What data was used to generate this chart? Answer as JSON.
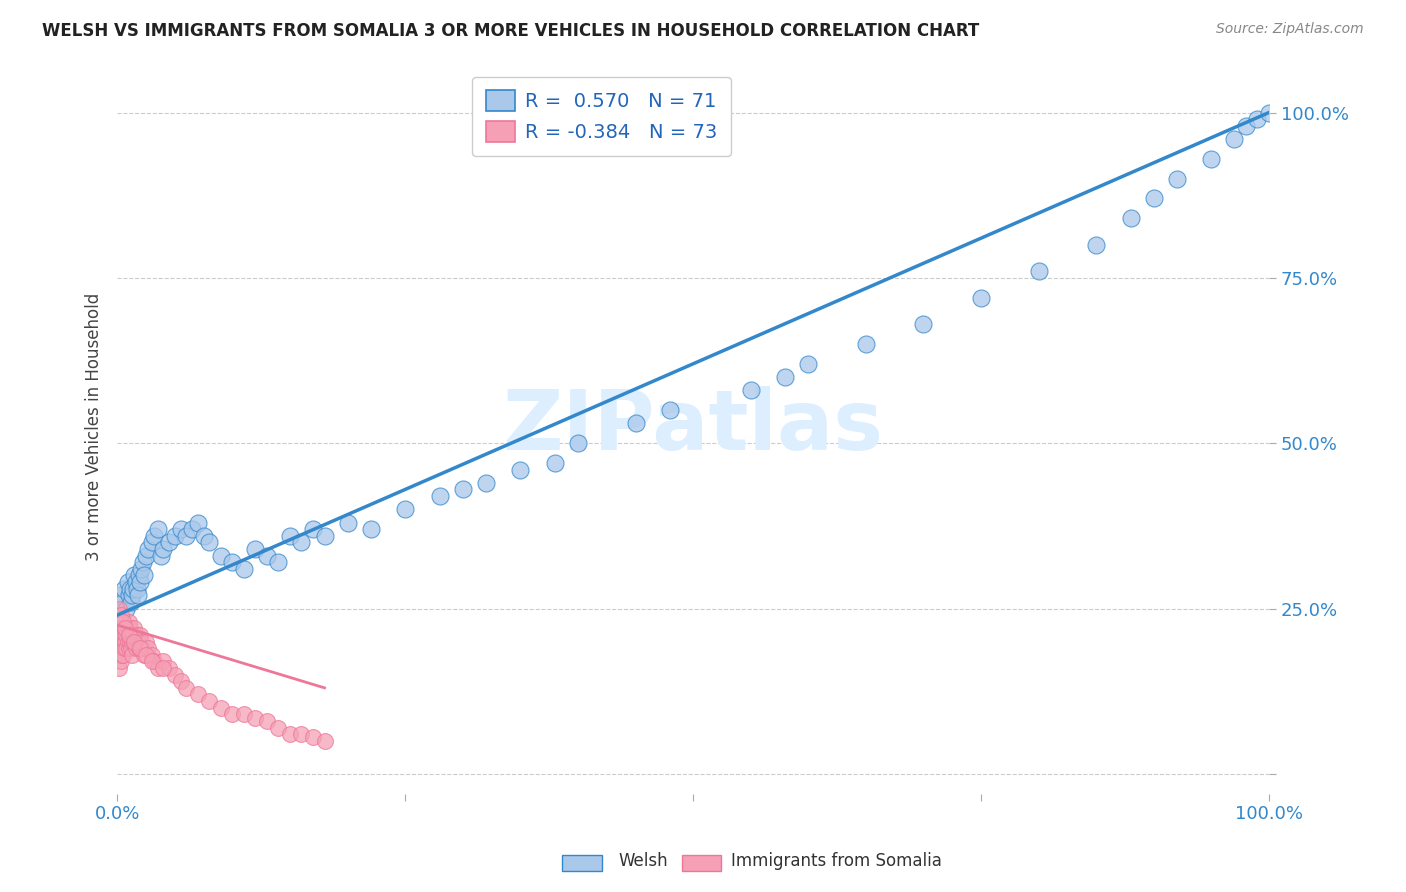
{
  "title": "WELSH VS IMMIGRANTS FROM SOMALIA 3 OR MORE VEHICLES IN HOUSEHOLD CORRELATION CHART",
  "source": "Source: ZipAtlas.com",
  "ylabel": "3 or more Vehicles in Household",
  "legend_welsh_r": "R =  0.570",
  "legend_welsh_n": "N = 71",
  "legend_somalia_r": "R = -0.384",
  "legend_somalia_n": "N = 73",
  "welsh_color": "#aac8ea",
  "somalia_color": "#f5a0b5",
  "welsh_line_color": "#3388cc",
  "somalia_line_color": "#ee7799",
  "watermark_color": "#ddeeff",
  "background_color": "#ffffff",
  "xlim": [
    0.0,
    100.0
  ],
  "ylim": [
    -3.0,
    108.0
  ],
  "welsh_x": [
    0.3,
    0.5,
    0.6,
    0.8,
    0.9,
    1.0,
    1.1,
    1.2,
    1.3,
    1.4,
    1.5,
    1.6,
    1.7,
    1.8,
    1.9,
    2.0,
    2.1,
    2.2,
    2.3,
    2.5,
    2.7,
    3.0,
    3.2,
    3.5,
    3.8,
    4.0,
    4.5,
    5.0,
    5.5,
    6.0,
    6.5,
    7.0,
    7.5,
    8.0,
    9.0,
    10.0,
    11.0,
    12.0,
    13.0,
    14.0,
    15.0,
    16.0,
    17.0,
    18.0,
    20.0,
    22.0,
    25.0,
    28.0,
    30.0,
    32.0,
    35.0,
    38.0,
    40.0,
    45.0,
    48.0,
    55.0,
    58.0,
    60.0,
    65.0,
    70.0,
    75.0,
    80.0,
    85.0,
    88.0,
    90.0,
    92.0,
    95.0,
    97.0,
    98.0,
    99.0,
    100.0
  ],
  "welsh_y": [
    27.0,
    26.0,
    28.0,
    25.0,
    29.0,
    27.0,
    28.0,
    26.0,
    27.0,
    28.0,
    30.0,
    29.0,
    28.0,
    27.0,
    30.0,
    29.0,
    31.0,
    32.0,
    30.0,
    33.0,
    34.0,
    35.0,
    36.0,
    37.0,
    33.0,
    34.0,
    35.0,
    36.0,
    37.0,
    36.0,
    37.0,
    38.0,
    36.0,
    35.0,
    33.0,
    32.0,
    31.0,
    34.0,
    33.0,
    32.0,
    36.0,
    35.0,
    37.0,
    36.0,
    38.0,
    37.0,
    40.0,
    42.0,
    43.0,
    44.0,
    46.0,
    47.0,
    50.0,
    53.0,
    55.0,
    58.0,
    60.0,
    62.0,
    65.0,
    68.0,
    72.0,
    76.0,
    80.0,
    84.0,
    87.0,
    90.0,
    93.0,
    96.0,
    98.0,
    99.0,
    100.0
  ],
  "somalia_x": [
    0.1,
    0.1,
    0.2,
    0.2,
    0.3,
    0.3,
    0.3,
    0.4,
    0.4,
    0.5,
    0.5,
    0.5,
    0.6,
    0.6,
    0.7,
    0.7,
    0.8,
    0.8,
    0.9,
    0.9,
    1.0,
    1.0,
    1.0,
    1.1,
    1.1,
    1.2,
    1.2,
    1.3,
    1.3,
    1.4,
    1.5,
    1.5,
    1.6,
    1.7,
    1.8,
    1.9,
    2.0,
    2.0,
    2.1,
    2.2,
    2.3,
    2.5,
    2.7,
    3.0,
    3.2,
    3.5,
    4.0,
    4.5,
    5.0,
    5.5,
    6.0,
    7.0,
    8.0,
    9.0,
    10.0,
    11.0,
    12.0,
    13.0,
    14.0,
    15.0,
    16.0,
    17.0,
    18.0,
    0.2,
    0.3,
    0.5,
    0.7,
    1.0,
    1.5,
    2.0,
    2.5,
    3.0,
    4.0
  ],
  "somalia_y": [
    20.0,
    18.0,
    22.0,
    16.0,
    21.0,
    19.0,
    17.0,
    20.0,
    18.0,
    22.0,
    20.0,
    18.0,
    21.0,
    19.0,
    22.0,
    20.0,
    21.0,
    19.0,
    22.0,
    20.0,
    23.0,
    21.0,
    19.0,
    22.0,
    20.0,
    21.0,
    19.0,
    20.0,
    18.0,
    21.0,
    22.0,
    20.0,
    19.0,
    21.0,
    20.0,
    19.0,
    21.0,
    19.0,
    20.0,
    19.0,
    18.0,
    20.0,
    19.0,
    18.0,
    17.0,
    16.0,
    17.0,
    16.0,
    15.0,
    14.0,
    13.0,
    12.0,
    11.0,
    10.0,
    9.0,
    9.0,
    8.5,
    8.0,
    7.0,
    6.0,
    6.0,
    5.5,
    5.0,
    25.0,
    24.0,
    23.0,
    22.0,
    21.0,
    20.0,
    19.0,
    18.0,
    17.0,
    16.0
  ],
  "welsh_line_x0": 0.0,
  "welsh_line_x1": 100.0,
  "welsh_line_y0": 24.0,
  "welsh_line_y1": 100.0,
  "somalia_line_x0": 0.0,
  "somalia_line_x1": 18.0,
  "somalia_line_y0": 22.5,
  "somalia_line_y1": 13.0
}
